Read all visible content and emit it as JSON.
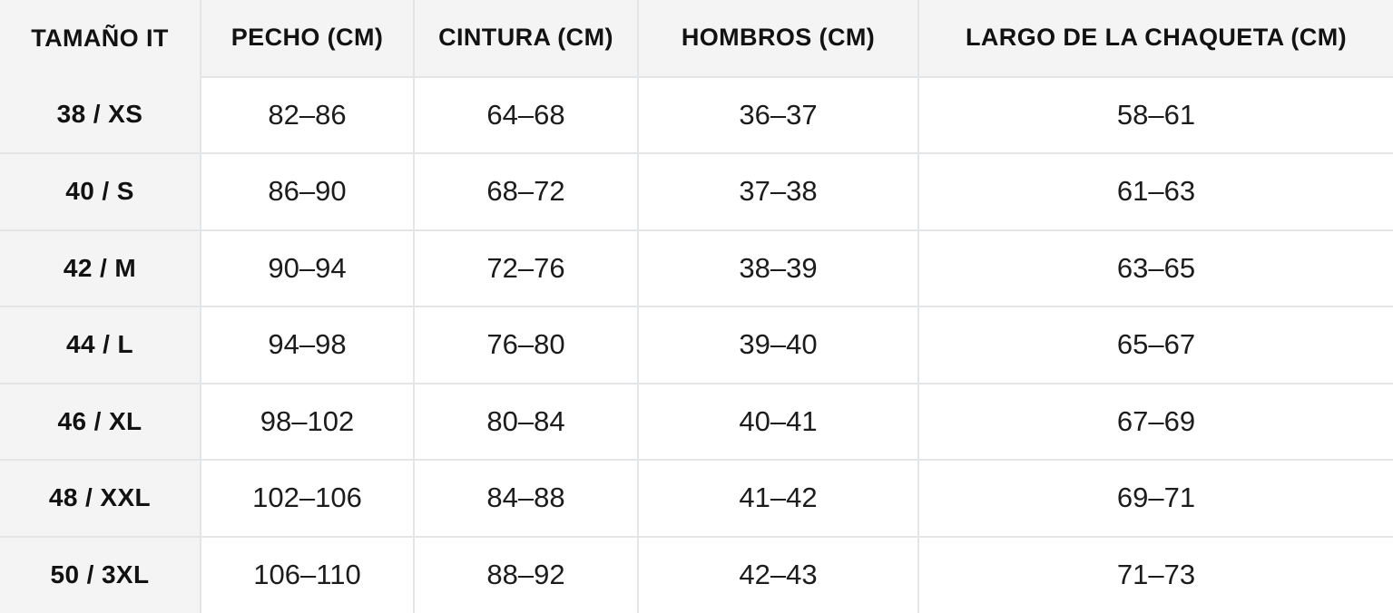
{
  "colors": {
    "header_background": "#f4f4f4",
    "row_label_background": "#f4f4f4",
    "cell_background": "#ffffff",
    "border": "#e4e5e7",
    "header_text": "#121212",
    "cell_text": "#1c1c1c"
  },
  "table": {
    "columns": [
      {
        "key": "size",
        "label": "TAMAÑO IT"
      },
      {
        "key": "chest",
        "label": "PECHO (CM)"
      },
      {
        "key": "waist",
        "label": "CINTURA (CM)"
      },
      {
        "key": "shoulders",
        "label": "HOMBROS (CM)"
      },
      {
        "key": "jacket_length",
        "label": "LARGO DE LA CHAQUETA (CM)"
      }
    ],
    "rows": [
      {
        "size": "38 / XS",
        "chest": "82–86",
        "waist": "64–68",
        "shoulders": "36–37",
        "jacket_length": "58–61"
      },
      {
        "size": "40 / S",
        "chest": "86–90",
        "waist": "68–72",
        "shoulders": "37–38",
        "jacket_length": "61–63"
      },
      {
        "size": "42 / M",
        "chest": "90–94",
        "waist": "72–76",
        "shoulders": "38–39",
        "jacket_length": "63–65"
      },
      {
        "size": "44 / L",
        "chest": "94–98",
        "waist": "76–80",
        "shoulders": "39–40",
        "jacket_length": "65–67"
      },
      {
        "size": "46 / XL",
        "chest": "98–102",
        "waist": "80–84",
        "shoulders": "40–41",
        "jacket_length": "67–69"
      },
      {
        "size": "48 / XXL",
        "chest": "102–106",
        "waist": "84–88",
        "shoulders": "41–42",
        "jacket_length": "69–71"
      },
      {
        "size": "50 / 3XL",
        "chest": "106–110",
        "waist": "88–92",
        "shoulders": "42–43",
        "jacket_length": "71–73"
      }
    ]
  }
}
